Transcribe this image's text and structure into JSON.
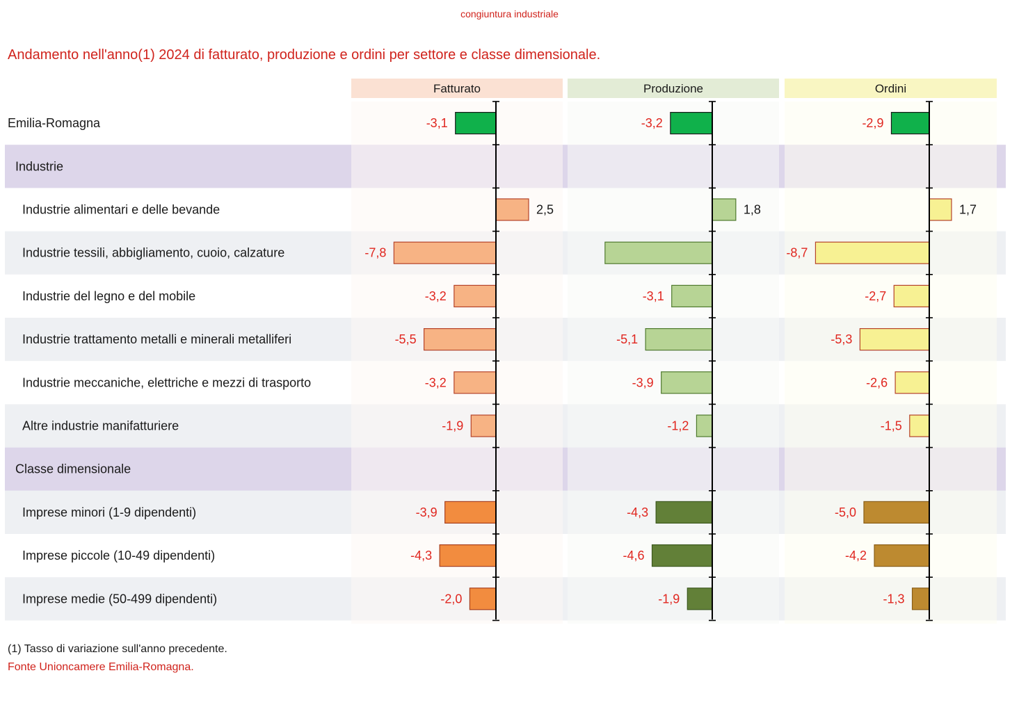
{
  "header": {
    "tag": "congiuntura industriale"
  },
  "title": "Andamento nell'anno(1) 2024 di fatturato, produzione e ordini per settore e classe dimensionale.",
  "footnote": "(1) Tasso di variazione sull'anno precedente.",
  "source": "Fonte Unioncamere Emilia-Romagna.",
  "colors": {
    "text": "#1a1a1a",
    "label_negative": "#e0261f",
    "section_band": "#ddd6ea",
    "alt_band": "#eef0f3",
    "total_bar": "#10b14b",
    "total_border": "#1a1a1a",
    "panel_headers": [
      "#fbe1d3",
      "#e3ecd6",
      "#f9f6c2"
    ],
    "panel_backgrounds": [
      "#fdf8f4",
      "#f8faf5",
      "#fdfdf0"
    ],
    "light_bars": [
      "#f7b384",
      "#b7d495",
      "#f7f193"
    ],
    "light_borders": [
      "#b5432a",
      "#4f7a2e",
      "#b5432a"
    ],
    "dark_bars": [
      "#f28c3f",
      "#628038",
      "#bd8a30"
    ],
    "dark_borders": [
      "#a8401f",
      "#3e5a20",
      "#8a5e18"
    ]
  },
  "chart_data": {
    "type": "bar",
    "orientation": "horizontal",
    "series": [
      {
        "name": "Fatturato",
        "values": [
          -3.1,
          null,
          2.5,
          -7.8,
          -3.2,
          -5.5,
          -3.2,
          -1.9,
          null,
          -3.9,
          -4.3,
          -2.0
        ]
      },
      {
        "name": "Produzione",
        "values": [
          -3.2,
          null,
          1.8,
          -8.2,
          -3.1,
          -5.1,
          -3.9,
          -1.2,
          null,
          -4.3,
          -4.6,
          -1.9
        ]
      },
      {
        "name": "Ordini",
        "values": [
          -2.9,
          null,
          1.7,
          -8.7,
          -2.7,
          -5.3,
          -2.6,
          -1.5,
          null,
          -5.0,
          -4.2,
          -1.3
        ]
      }
    ],
    "value_labels": [
      [
        "-3,1",
        "",
        "2,5",
        "-7,8",
        "-3,2",
        "-5,5",
        "-3,2",
        "-1,9",
        "",
        "-3,9",
        "-4,3",
        "-2,0"
      ],
      [
        "-3,2",
        "",
        "1,8",
        "",
        "-3,1",
        "-5,1",
        "-3,9",
        "-1,2",
        "",
        "-4,3",
        "-4,6",
        "-1,9"
      ],
      [
        "-2,9",
        "",
        "1,7",
        "-8,7",
        "-2,7",
        "-5,3",
        "-2,6",
        "-1,5",
        "",
        "-5,0",
        "-4,2",
        "-1,3"
      ]
    ],
    "rows": [
      {
        "label": "Emilia-Romagna",
        "kind": "total",
        "indent": 0
      },
      {
        "label": "Industrie",
        "kind": "section",
        "indent": 1
      },
      {
        "label": "Industrie alimentari e delle bevande",
        "kind": "industry",
        "indent": 2
      },
      {
        "label": "Industrie tessili, abbigliamento, cuoio, calzature",
        "kind": "industry",
        "indent": 2
      },
      {
        "label": "Industrie del legno e del mobile",
        "kind": "industry",
        "indent": 2
      },
      {
        "label": "Industrie trattamento metalli e minerali metalliferi",
        "kind": "industry",
        "indent": 2
      },
      {
        "label": "Industrie meccaniche, elettriche e mezzi di trasporto",
        "kind": "industry",
        "indent": 2
      },
      {
        "label": "Altre industrie manifatturiere",
        "kind": "industry",
        "indent": 2
      },
      {
        "label": "Classe dimensionale",
        "kind": "section",
        "indent": 1
      },
      {
        "label": "Imprese minori (1-9 dipendenti)",
        "kind": "size",
        "indent": 2
      },
      {
        "label": "Imprese piccole (10-49 dipendenti)",
        "kind": "size",
        "indent": 2
      },
      {
        "label": "Imprese medie (50-499 dipendenti)",
        "kind": "size",
        "indent": 2
      }
    ],
    "xlabel": "",
    "ylabel": "",
    "unit": "%",
    "value_range": [
      -11.5,
      7.0
    ],
    "grid": false,
    "legend": "none"
  }
}
